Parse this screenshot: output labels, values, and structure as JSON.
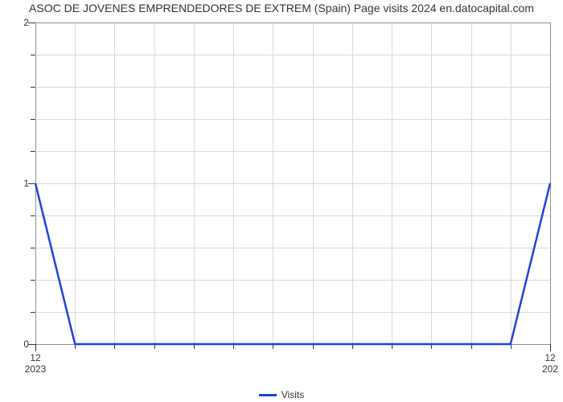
{
  "title": "ASOC DE JOVENES EMPRENDEDORES DE EXTREM (Spain) Page visits 2024 en.datocapital.com",
  "chart": {
    "type": "line",
    "background_color": "#ffffff",
    "grid_color_minor": "#d8d8d8",
    "grid_color_major": "#909090",
    "tick_color": "#333333",
    "axis_font_size": 12,
    "title_font_size": 14,
    "series_color": "#2142cf",
    "line_width": 2.5,
    "xlim": [
      0,
      13
    ],
    "ylim": [
      0,
      2
    ],
    "y_ticks_major": [
      0,
      1,
      2
    ],
    "y_minor_segments": 5,
    "x_major_positions": [
      0,
      13
    ],
    "x_major_labels": [
      "12",
      "12"
    ],
    "x_sub_labels": [
      "2023",
      "202"
    ],
    "x_minor_count": 13,
    "points": [
      {
        "x": 0,
        "y": 1
      },
      {
        "x": 1,
        "y": 0
      },
      {
        "x": 2,
        "y": 0
      },
      {
        "x": 3,
        "y": 0
      },
      {
        "x": 4,
        "y": 0
      },
      {
        "x": 5,
        "y": 0
      },
      {
        "x": 6,
        "y": 0
      },
      {
        "x": 7,
        "y": 0
      },
      {
        "x": 8,
        "y": 0
      },
      {
        "x": 9,
        "y": 0
      },
      {
        "x": 10,
        "y": 0
      },
      {
        "x": 11,
        "y": 0
      },
      {
        "x": 12,
        "y": 0
      },
      {
        "x": 13,
        "y": 1
      }
    ],
    "legend_label": "Visits"
  }
}
